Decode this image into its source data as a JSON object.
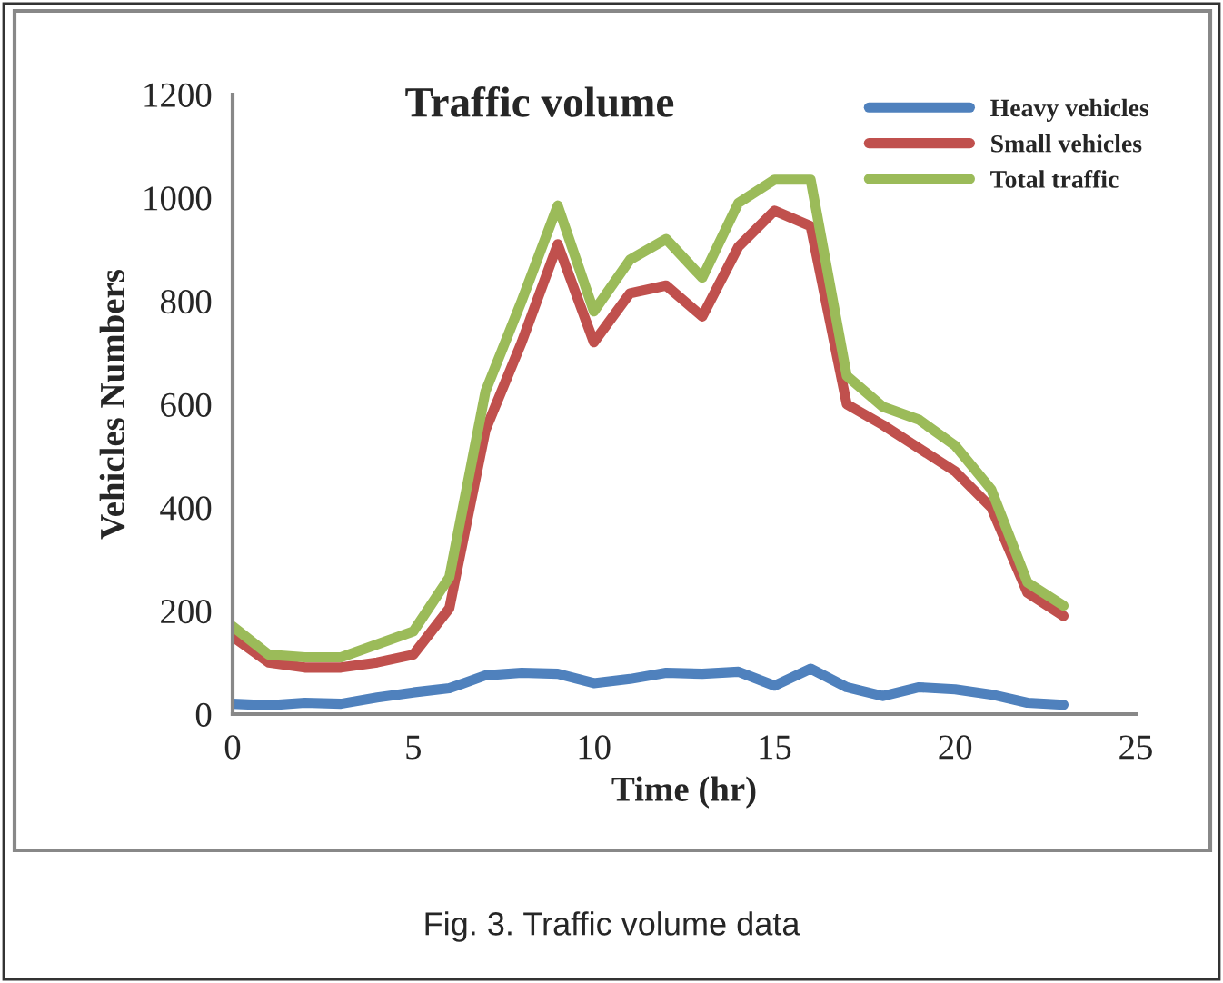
{
  "chart_data": {
    "type": "line",
    "title": "Traffic volume",
    "xlabel": "Time (hr)",
    "ylabel": "Vehicles Numbers",
    "x": [
      0,
      1,
      2,
      3,
      4,
      5,
      6,
      7,
      8,
      9,
      10,
      11,
      12,
      13,
      14,
      15,
      16,
      17,
      18,
      19,
      20,
      21,
      22,
      23
    ],
    "series": [
      {
        "name": "Heavy vehicles",
        "color": "#4f81bd",
        "values": [
          20,
          17,
          22,
          20,
          32,
          42,
          50,
          75,
          80,
          78,
          60,
          68,
          80,
          78,
          82,
          55,
          88,
          52,
          35,
          52,
          48,
          38,
          22,
          18
        ]
      },
      {
        "name": "Small vehicles",
        "color": "#c0504d",
        "values": [
          150,
          100,
          90,
          90,
          100,
          115,
          205,
          550,
          720,
          910,
          720,
          815,
          830,
          770,
          905,
          975,
          945,
          600,
          560,
          515,
          470,
          400,
          235,
          190
        ]
      },
      {
        "name": "Total traffic",
        "color": "#9bbb59",
        "values": [
          170,
          115,
          110,
          110,
          135,
          160,
          265,
          625,
          800,
          985,
          780,
          880,
          920,
          845,
          990,
          1035,
          1035,
          655,
          595,
          570,
          520,
          435,
          255,
          210
        ]
      }
    ],
    "xlim": [
      0,
      25
    ],
    "xticks": [
      0,
      5,
      10,
      15,
      20,
      25
    ],
    "ylim": [
      0,
      1200
    ],
    "yticks": [
      0,
      200,
      400,
      600,
      800,
      1000,
      1200
    ],
    "grid": false,
    "legend": "top right",
    "marker": "none",
    "line_style": "solid",
    "annotations": [
      "Fig. 3. Traffic volume data"
    ]
  }
}
